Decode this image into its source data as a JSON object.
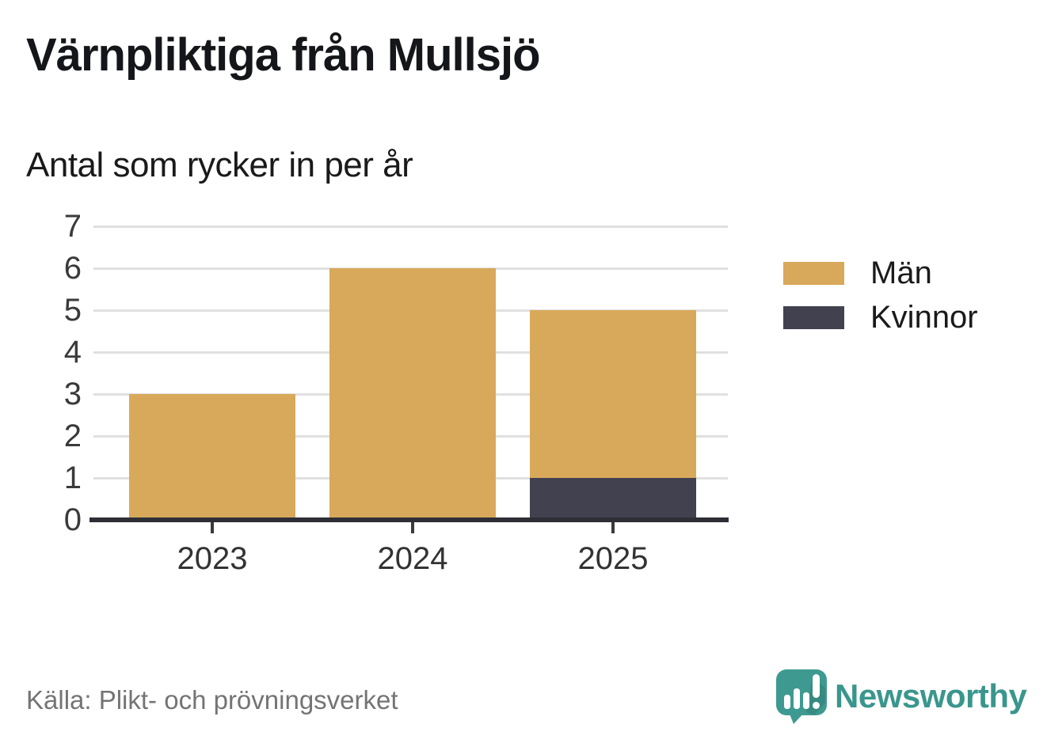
{
  "title": "Värnpliktiga från Mullsjö",
  "subtitle": "Antal som rycker in per år",
  "source": "Källa: Plikt- och prövningsverket",
  "brand": {
    "name": "Newsworthy",
    "color": "#3a968d",
    "icon": "speech-bubble-bar-chart-exclamation"
  },
  "chart_data": {
    "type": "bar",
    "stacked": true,
    "title": "Värnpliktiga från Mullsjö",
    "subtitle": "Antal som rycker in per år",
    "categories": [
      "2023",
      "2024",
      "2025"
    ],
    "series": [
      {
        "name": "Män",
        "color": "#d8a95a",
        "values": [
          3,
          6,
          4
        ]
      },
      {
        "name": "Kvinnor",
        "color": "#414150",
        "values": [
          0,
          0,
          1
        ]
      }
    ],
    "totals": [
      3,
      6,
      5
    ],
    "xlabel": "",
    "ylabel": "",
    "ylim": [
      0,
      7
    ],
    "yticks": [
      0,
      1,
      2,
      3,
      4,
      5,
      6,
      7
    ],
    "grid": true,
    "legend_position": "right",
    "colors": {
      "grid": "#e0e0e0",
      "axis": "#2e2e36",
      "tick_label": "#3a3a3a"
    }
  },
  "legend": {
    "items": [
      {
        "label": "Män",
        "color": "#d8a95a"
      },
      {
        "label": "Kvinnor",
        "color": "#414150"
      }
    ]
  }
}
